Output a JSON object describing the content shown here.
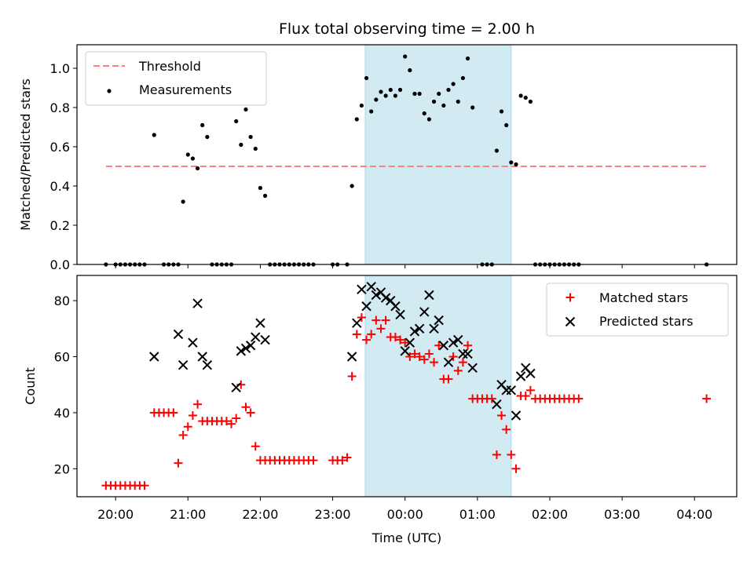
{
  "title": "Flux total observing time = 2.00 h",
  "colors": {
    "threshold": "#ff7f7f",
    "measurements": "#000000",
    "matched": "#ff0000",
    "predicted": "#000000",
    "span": "#add8e6"
  },
  "chart_data": [
    {
      "type": "scatter",
      "panel": "top",
      "ylabel": "Matched/Predicted stars",
      "xlabel": "",
      "x_range": [
        "19:28",
        "04:35"
      ],
      "ylim": [
        0,
        1.12
      ],
      "yticks": [
        0.0,
        0.2,
        0.4,
        0.6,
        0.8,
        1.0
      ],
      "ytick_labels": [
        "0.0",
        "0.2",
        "0.4",
        "0.6",
        "0.8",
        "1.0"
      ],
      "shaded_span": [
        "23:27",
        "01:28"
      ],
      "legend": {
        "position": "upper-left",
        "entries": [
          "Threshold",
          "Measurements"
        ]
      },
      "threshold": {
        "name": "Threshold",
        "y": 0.5,
        "x_start": "19:52",
        "x_end": "04:10"
      },
      "series": [
        {
          "name": "Measurements",
          "marker": "dot",
          "points": [
            [
              "19:52",
              0.0
            ],
            [
              "20:00",
              0.0
            ],
            [
              "20:04",
              0.0
            ],
            [
              "20:08",
              0.0
            ],
            [
              "20:12",
              0.0
            ],
            [
              "20:16",
              0.0
            ],
            [
              "20:20",
              0.0
            ],
            [
              "20:24",
              0.0
            ],
            [
              "20:32",
              0.66
            ],
            [
              "20:40",
              0.0
            ],
            [
              "20:44",
              0.0
            ],
            [
              "20:48",
              0.0
            ],
            [
              "20:52",
              0.0
            ],
            [
              "20:56",
              0.32
            ],
            [
              "21:00",
              0.56
            ],
            [
              "21:04",
              0.54
            ],
            [
              "21:08",
              0.49
            ],
            [
              "21:12",
              0.71
            ],
            [
              "21:16",
              0.65
            ],
            [
              "21:20",
              0.0
            ],
            [
              "21:24",
              0.0
            ],
            [
              "21:28",
              0.0
            ],
            [
              "21:32",
              0.0
            ],
            [
              "21:36",
              0.0
            ],
            [
              "21:40",
              0.73
            ],
            [
              "21:44",
              0.61
            ],
            [
              "21:48",
              0.79
            ],
            [
              "21:52",
              0.65
            ],
            [
              "21:56",
              0.59
            ],
            [
              "22:00",
              0.39
            ],
            [
              "22:04",
              0.35
            ],
            [
              "22:08",
              0.0
            ],
            [
              "22:12",
              0.0
            ],
            [
              "22:16",
              0.0
            ],
            [
              "22:20",
              0.0
            ],
            [
              "22:24",
              0.0
            ],
            [
              "22:28",
              0.0
            ],
            [
              "22:32",
              0.0
            ],
            [
              "22:36",
              0.0
            ],
            [
              "22:40",
              0.0
            ],
            [
              "22:44",
              0.0
            ],
            [
              "23:00",
              0.0
            ],
            [
              "23:04",
              0.0
            ],
            [
              "23:12",
              0.0
            ],
            [
              "23:16",
              0.4
            ],
            [
              "23:20",
              0.74
            ],
            [
              "23:24",
              0.81
            ],
            [
              "23:28",
              0.95
            ],
            [
              "23:32",
              0.78
            ],
            [
              "23:36",
              0.84
            ],
            [
              "23:40",
              0.88
            ],
            [
              "23:44",
              0.86
            ],
            [
              "23:48",
              0.89
            ],
            [
              "23:52",
              0.86
            ],
            [
              "23:56",
              0.89
            ],
            [
              "00:00",
              1.06
            ],
            [
              "00:04",
              0.99
            ],
            [
              "00:08",
              0.87
            ],
            [
              "00:12",
              0.87
            ],
            [
              "00:16",
              0.77
            ],
            [
              "00:20",
              0.74
            ],
            [
              "00:24",
              0.83
            ],
            [
              "00:28",
              0.87
            ],
            [
              "00:32",
              0.81
            ],
            [
              "00:36",
              0.89
            ],
            [
              "00:40",
              0.92
            ],
            [
              "00:44",
              0.83
            ],
            [
              "00:48",
              0.95
            ],
            [
              "00:52",
              1.05
            ],
            [
              "00:56",
              0.8
            ],
            [
              "01:04",
              0.0
            ],
            [
              "01:08",
              0.0
            ],
            [
              "01:12",
              0.0
            ],
            [
              "01:16",
              0.58
            ],
            [
              "01:20",
              0.78
            ],
            [
              "01:24",
              0.71
            ],
            [
              "01:28",
              0.52
            ],
            [
              "01:32",
              0.51
            ],
            [
              "01:36",
              0.86
            ],
            [
              "01:40",
              0.85
            ],
            [
              "01:44",
              0.83
            ],
            [
              "01:48",
              0.0
            ],
            [
              "01:52",
              0.0
            ],
            [
              "01:56",
              0.0
            ],
            [
              "02:00",
              0.0
            ],
            [
              "02:04",
              0.0
            ],
            [
              "02:08",
              0.0
            ],
            [
              "02:12",
              0.0
            ],
            [
              "02:16",
              0.0
            ],
            [
              "02:20",
              0.0
            ],
            [
              "02:24",
              0.0
            ],
            [
              "04:10",
              0.0
            ]
          ]
        }
      ]
    },
    {
      "type": "scatter",
      "panel": "bottom",
      "xlabel": "Time (UTC)",
      "ylabel": "Count",
      "x_range": [
        "19:28",
        "04:35"
      ],
      "xticks": [
        "20:00",
        "21:00",
        "22:00",
        "23:00",
        "00:00",
        "01:00",
        "02:00",
        "03:00",
        "04:00"
      ],
      "ylim": [
        10,
        89
      ],
      "yticks": [
        20,
        40,
        60,
        80
      ],
      "ytick_labels": [
        "20",
        "40",
        "60",
        "80"
      ],
      "shaded_span": [
        "23:27",
        "01:28"
      ],
      "legend": {
        "position": "upper-right",
        "entries": [
          "Matched stars",
          "Predicted stars"
        ]
      },
      "series": [
        {
          "name": "Matched stars",
          "marker": "plus",
          "points": [
            [
              "19:52",
              14
            ],
            [
              "19:56",
              14
            ],
            [
              "20:00",
              14
            ],
            [
              "20:04",
              14
            ],
            [
              "20:08",
              14
            ],
            [
              "20:12",
              14
            ],
            [
              "20:16",
              14
            ],
            [
              "20:20",
              14
            ],
            [
              "20:24",
              14
            ],
            [
              "20:32",
              40
            ],
            [
              "20:36",
              40
            ],
            [
              "20:40",
              40
            ],
            [
              "20:44",
              40
            ],
            [
              "20:48",
              40
            ],
            [
              "20:52",
              22
            ],
            [
              "20:56",
              32
            ],
            [
              "21:00",
              35
            ],
            [
              "21:04",
              39
            ],
            [
              "21:08",
              43
            ],
            [
              "21:12",
              37
            ],
            [
              "21:16",
              37
            ],
            [
              "21:20",
              37
            ],
            [
              "21:24",
              37
            ],
            [
              "21:28",
              37
            ],
            [
              "21:32",
              37
            ],
            [
              "21:36",
              36
            ],
            [
              "21:40",
              38
            ],
            [
              "21:44",
              50
            ],
            [
              "21:48",
              42
            ],
            [
              "21:52",
              40
            ],
            [
              "21:56",
              28
            ],
            [
              "22:00",
              23
            ],
            [
              "22:04",
              23
            ],
            [
              "22:08",
              23
            ],
            [
              "22:12",
              23
            ],
            [
              "22:16",
              23
            ],
            [
              "22:20",
              23
            ],
            [
              "22:24",
              23
            ],
            [
              "22:28",
              23
            ],
            [
              "22:32",
              23
            ],
            [
              "22:36",
              23
            ],
            [
              "22:40",
              23
            ],
            [
              "22:44",
              23
            ],
            [
              "23:00",
              23
            ],
            [
              "23:04",
              23
            ],
            [
              "23:08",
              23
            ],
            [
              "23:12",
              24
            ],
            [
              "23:16",
              53
            ],
            [
              "23:20",
              68
            ],
            [
              "23:24",
              74
            ],
            [
              "23:28",
              66
            ],
            [
              "23:32",
              68
            ],
            [
              "23:36",
              73
            ],
            [
              "23:40",
              70
            ],
            [
              "23:44",
              73
            ],
            [
              "23:48",
              67
            ],
            [
              "23:52",
              67
            ],
            [
              "23:56",
              66
            ],
            [
              "00:00",
              65
            ],
            [
              "00:04",
              60
            ],
            [
              "00:08",
              61
            ],
            [
              "00:12",
              60
            ],
            [
              "00:16",
              59
            ],
            [
              "00:20",
              61
            ],
            [
              "00:24",
              58
            ],
            [
              "00:28",
              64
            ],
            [
              "00:32",
              52
            ],
            [
              "00:36",
              52
            ],
            [
              "00:40",
              60
            ],
            [
              "00:44",
              55
            ],
            [
              "00:48",
              58
            ],
            [
              "00:52",
              64
            ],
            [
              "00:56",
              45
            ],
            [
              "01:00",
              45
            ],
            [
              "01:04",
              45
            ],
            [
              "01:08",
              45
            ],
            [
              "01:12",
              45
            ],
            [
              "01:16",
              25
            ],
            [
              "01:20",
              39
            ],
            [
              "01:24",
              34
            ],
            [
              "01:28",
              25
            ],
            [
              "01:32",
              20
            ],
            [
              "01:36",
              46
            ],
            [
              "01:40",
              46
            ],
            [
              "01:44",
              48
            ],
            [
              "01:48",
              45
            ],
            [
              "01:52",
              45
            ],
            [
              "01:56",
              45
            ],
            [
              "02:00",
              45
            ],
            [
              "02:04",
              45
            ],
            [
              "02:08",
              45
            ],
            [
              "02:12",
              45
            ],
            [
              "02:16",
              45
            ],
            [
              "02:20",
              45
            ],
            [
              "02:24",
              45
            ],
            [
              "04:10",
              45
            ]
          ]
        },
        {
          "name": "Predicted stars",
          "marker": "x",
          "points": [
            [
              "20:32",
              60
            ],
            [
              "20:52",
              68
            ],
            [
              "20:56",
              57
            ],
            [
              "21:04",
              65
            ],
            [
              "21:08",
              79
            ],
            [
              "21:12",
              60
            ],
            [
              "21:16",
              57
            ],
            [
              "21:40",
              49
            ],
            [
              "21:44",
              62
            ],
            [
              "21:48",
              63
            ],
            [
              "21:52",
              64
            ],
            [
              "21:56",
              67
            ],
            [
              "22:00",
              72
            ],
            [
              "22:04",
              66
            ],
            [
              "23:16",
              60
            ],
            [
              "23:20",
              72
            ],
            [
              "23:24",
              84
            ],
            [
              "23:28",
              78
            ],
            [
              "23:32",
              85
            ],
            [
              "23:36",
              82
            ],
            [
              "23:40",
              83
            ],
            [
              "23:44",
              81
            ],
            [
              "23:48",
              80
            ],
            [
              "23:52",
              78
            ],
            [
              "23:56",
              75
            ],
            [
              "00:00",
              62
            ],
            [
              "00:04",
              65
            ],
            [
              "00:08",
              69
            ],
            [
              "00:12",
              70
            ],
            [
              "00:16",
              76
            ],
            [
              "00:20",
              82
            ],
            [
              "00:24",
              70
            ],
            [
              "00:28",
              73
            ],
            [
              "00:32",
              64
            ],
            [
              "00:36",
              58
            ],
            [
              "00:40",
              65
            ],
            [
              "00:44",
              66
            ],
            [
              "00:48",
              61
            ],
            [
              "00:52",
              61
            ],
            [
              "00:56",
              56
            ],
            [
              "01:16",
              43
            ],
            [
              "01:20",
              50
            ],
            [
              "01:24",
              48
            ],
            [
              "01:28",
              48
            ],
            [
              "01:32",
              39
            ],
            [
              "01:36",
              53
            ],
            [
              "01:40",
              56
            ],
            [
              "01:44",
              54
            ]
          ]
        }
      ]
    }
  ]
}
